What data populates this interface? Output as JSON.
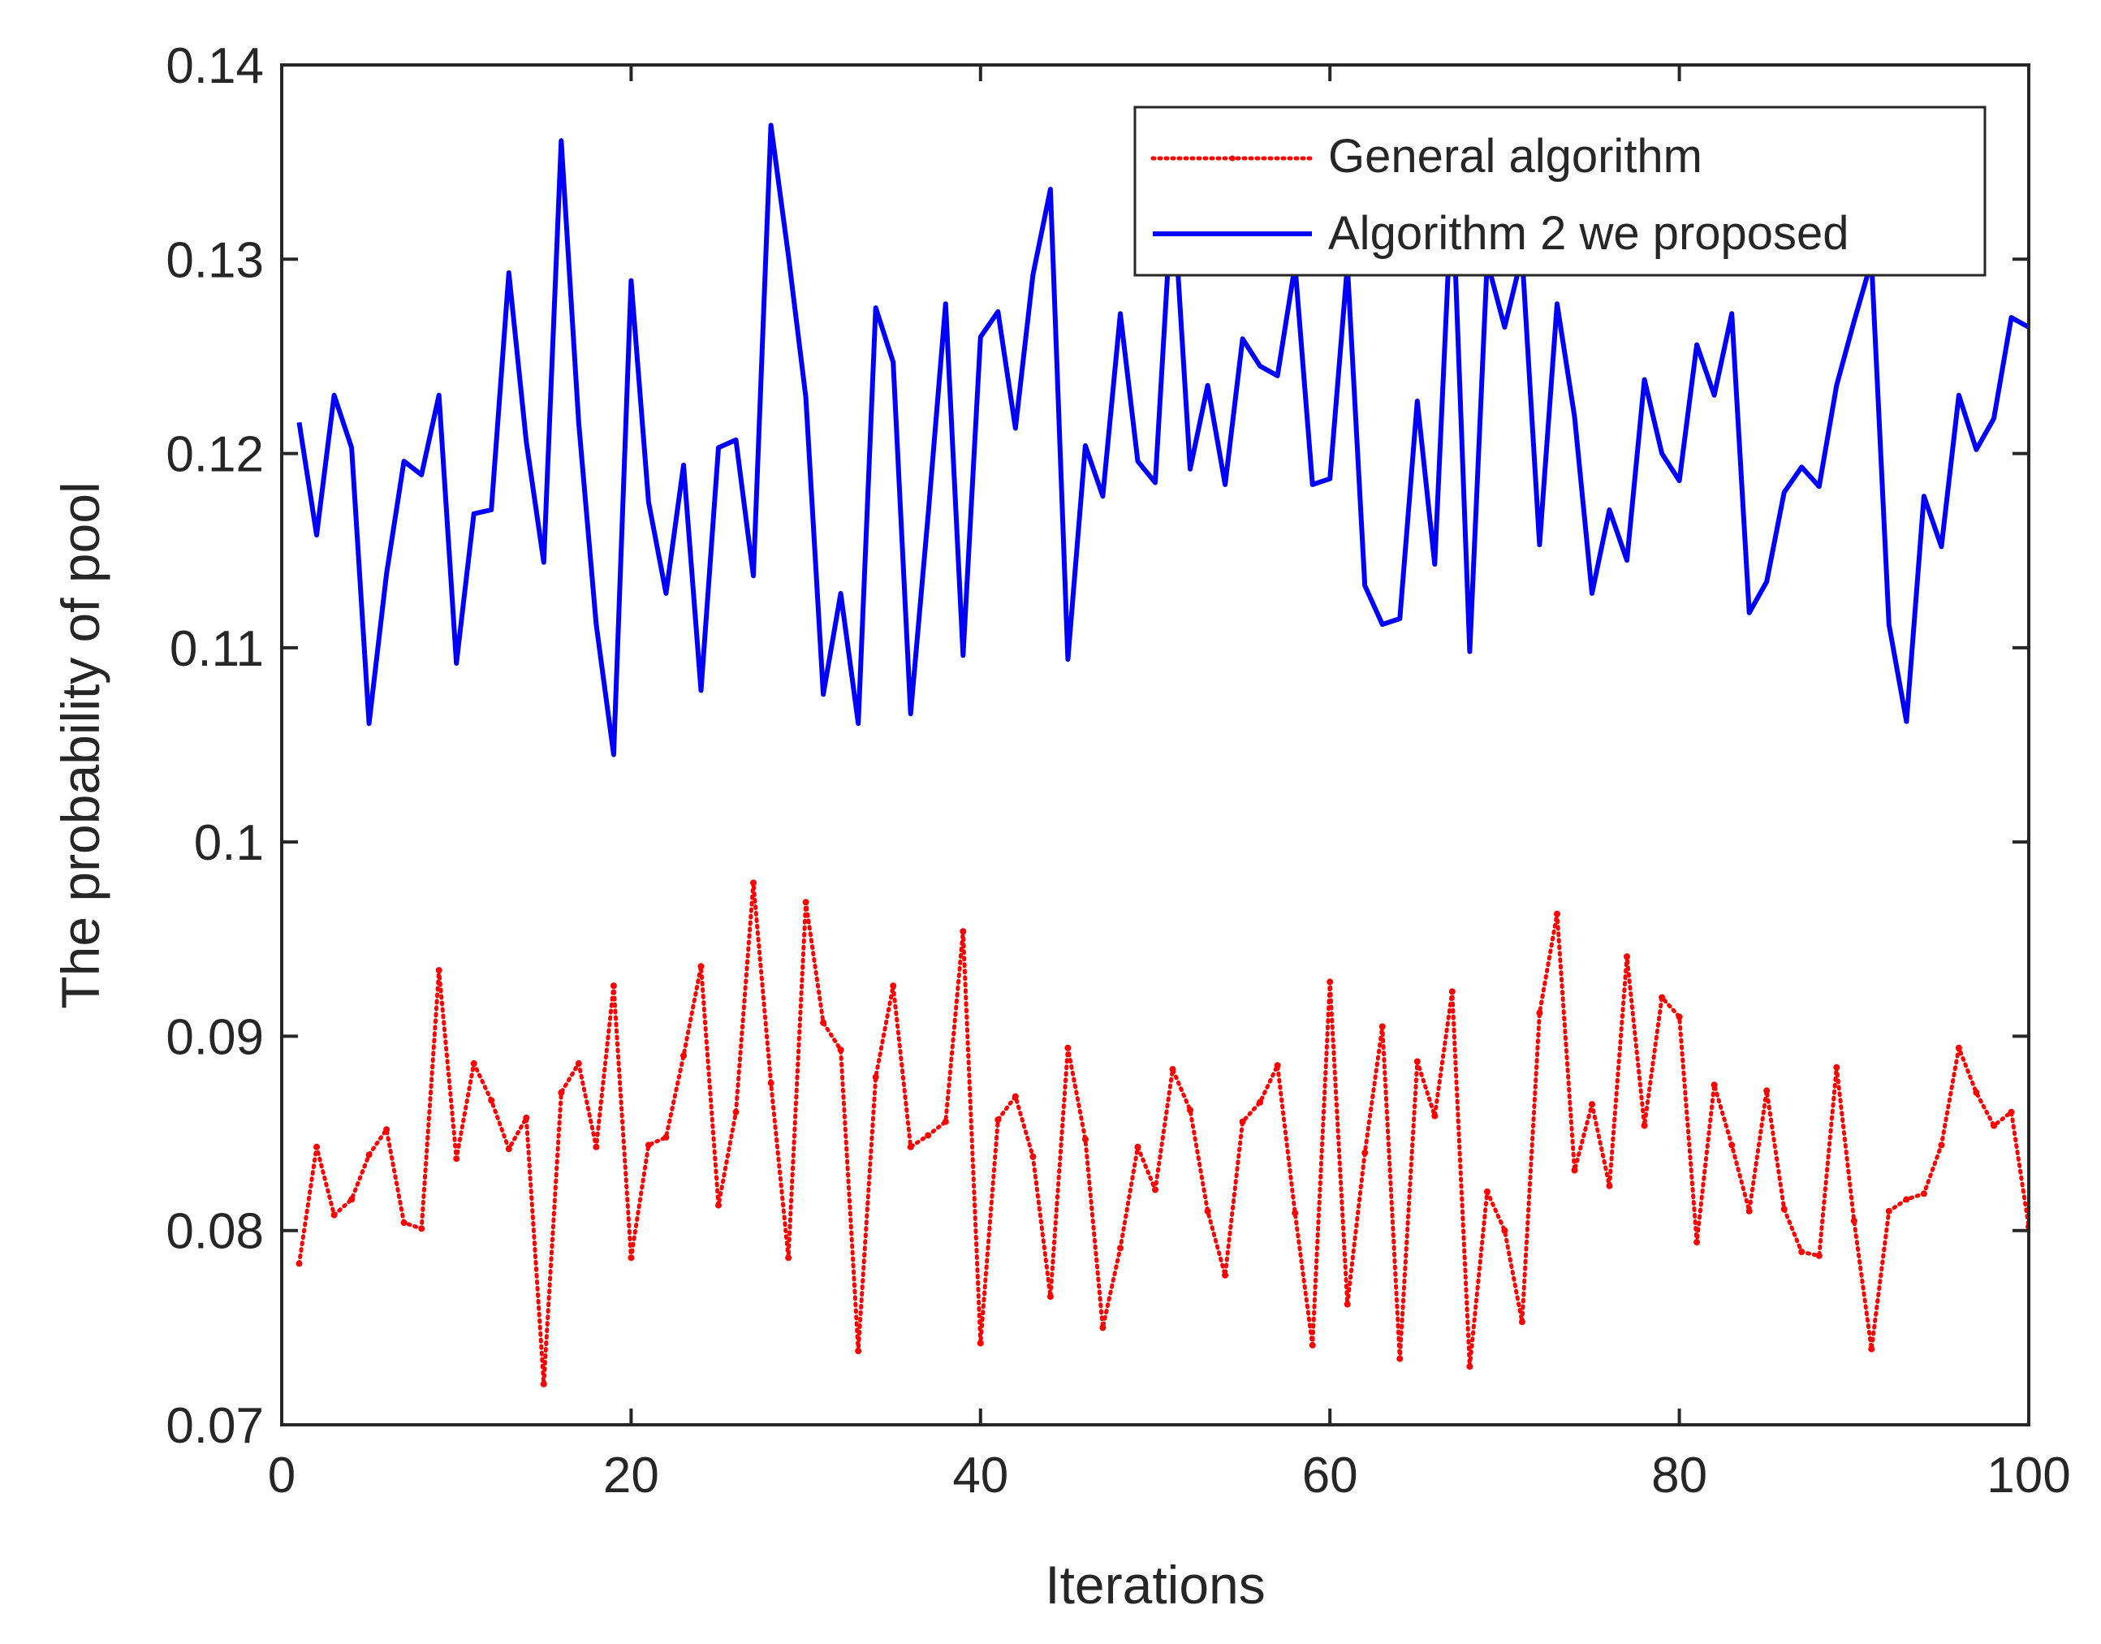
{
  "chart_data": {
    "type": "line",
    "title": "",
    "xlabel": "Iterations",
    "ylabel": "The probability of pool",
    "xlim": [
      0,
      100
    ],
    "ylim": [
      0.07,
      0.14
    ],
    "xticks": [
      0,
      20,
      40,
      60,
      80,
      100
    ],
    "xtick_labels": [
      "0",
      "20",
      "40",
      "60",
      "80",
      "100"
    ],
    "yticks": [
      0.07,
      0.08,
      0.09,
      0.1,
      0.11,
      0.12,
      0.13,
      0.14
    ],
    "ytick_labels": [
      "0.07",
      "0.08",
      "0.09",
      "0.1",
      "0.11",
      "0.12",
      "0.13",
      "0.14"
    ],
    "grid": false,
    "legend_position": "top-right",
    "x": [
      1,
      2,
      3,
      4,
      5,
      6,
      7,
      8,
      9,
      10,
      11,
      12,
      13,
      14,
      15,
      16,
      17,
      18,
      19,
      20,
      21,
      22,
      23,
      24,
      25,
      26,
      27,
      28,
      29,
      30,
      31,
      32,
      33,
      34,
      35,
      36,
      37,
      38,
      39,
      40,
      41,
      42,
      43,
      44,
      45,
      46,
      47,
      48,
      49,
      50,
      51,
      52,
      53,
      54,
      55,
      56,
      57,
      58,
      59,
      60,
      61,
      62,
      63,
      64,
      65,
      66,
      67,
      68,
      69,
      70,
      71,
      72,
      73,
      74,
      75,
      76,
      77,
      78,
      79,
      80,
      81,
      82,
      83,
      84,
      85,
      86,
      87,
      88,
      89,
      90,
      91,
      92,
      93,
      94,
      95,
      96,
      97,
      98,
      99,
      100
    ],
    "series": [
      {
        "name": "General algorithm",
        "color": "#ff0000",
        "style": "dotted",
        "values": [
          0.0783,
          0.0843,
          0.0808,
          0.0816,
          0.0839,
          0.0852,
          0.0804,
          0.0801,
          0.0934,
          0.0837,
          0.0886,
          0.0867,
          0.0842,
          0.0858,
          0.0721,
          0.0871,
          0.0886,
          0.0843,
          0.0926,
          0.0786,
          0.0844,
          0.0848,
          0.089,
          0.0936,
          0.0813,
          0.0861,
          0.0979,
          0.0876,
          0.0786,
          0.0969,
          0.0907,
          0.0893,
          0.0738,
          0.0879,
          0.0926,
          0.0843,
          0.0849,
          0.0856,
          0.0954,
          0.0742,
          0.0857,
          0.0869,
          0.0838,
          0.0766,
          0.0894,
          0.0847,
          0.075,
          0.0791,
          0.0843,
          0.0821,
          0.0883,
          0.0862,
          0.081,
          0.0777,
          0.0856,
          0.0866,
          0.0885,
          0.0809,
          0.0741,
          0.0928,
          0.0762,
          0.084,
          0.0905,
          0.0734,
          0.0887,
          0.0859,
          0.0923,
          0.073,
          0.082,
          0.08,
          0.0753,
          0.0912,
          0.0963,
          0.0831,
          0.0865,
          0.0823,
          0.0941,
          0.0854,
          0.092,
          0.091,
          0.0794,
          0.0875,
          0.0844,
          0.081,
          0.0872,
          0.0811,
          0.0789,
          0.0787,
          0.0884,
          0.0805,
          0.0739,
          0.081,
          0.0816,
          0.0819,
          0.0844,
          0.0894,
          0.0871,
          0.0854,
          0.0861,
          0.0802
        ]
      },
      {
        "name": "Algorithm 2 we proposed",
        "color": "#0000ff",
        "style": "solid",
        "values": [
          0.1216,
          0.1158,
          0.123,
          0.1203,
          0.1061,
          0.1138,
          0.1196,
          0.1189,
          0.123,
          0.1092,
          0.1169,
          0.1171,
          0.1293,
          0.1206,
          0.1144,
          0.1361,
          0.1216,
          0.1112,
          0.1045,
          0.1289,
          0.1175,
          0.1128,
          0.1194,
          0.1078,
          0.1203,
          0.1207,
          0.1137,
          0.1369,
          0.1302,
          0.1229,
          0.1076,
          0.1128,
          0.1061,
          0.1275,
          0.1247,
          0.1066,
          0.1168,
          0.1277,
          0.1096,
          0.126,
          0.1273,
          0.1213,
          0.1292,
          0.1336,
          0.1094,
          0.1204,
          0.1178,
          0.1272,
          0.1196,
          0.1185,
          0.1337,
          0.1192,
          0.1235,
          0.1184,
          0.1259,
          0.1245,
          0.124,
          0.1297,
          0.1184,
          0.1187,
          0.1297,
          0.1132,
          0.1112,
          0.1115,
          0.1227,
          0.1143,
          0.1339,
          0.1098,
          0.1299,
          0.1265,
          0.1302,
          0.1153,
          0.1277,
          0.1219,
          0.1128,
          0.1171,
          0.1145,
          0.1238,
          0.12,
          0.1186,
          0.1256,
          0.123,
          0.1272,
          0.1118,
          0.1134,
          0.118,
          0.1193,
          0.1183,
          0.1235,
          0.1268,
          0.1299,
          0.1112,
          0.1062,
          0.1178,
          0.1152,
          0.123,
          0.1202,
          0.1218,
          0.127,
          0.1265
        ]
      }
    ]
  }
}
